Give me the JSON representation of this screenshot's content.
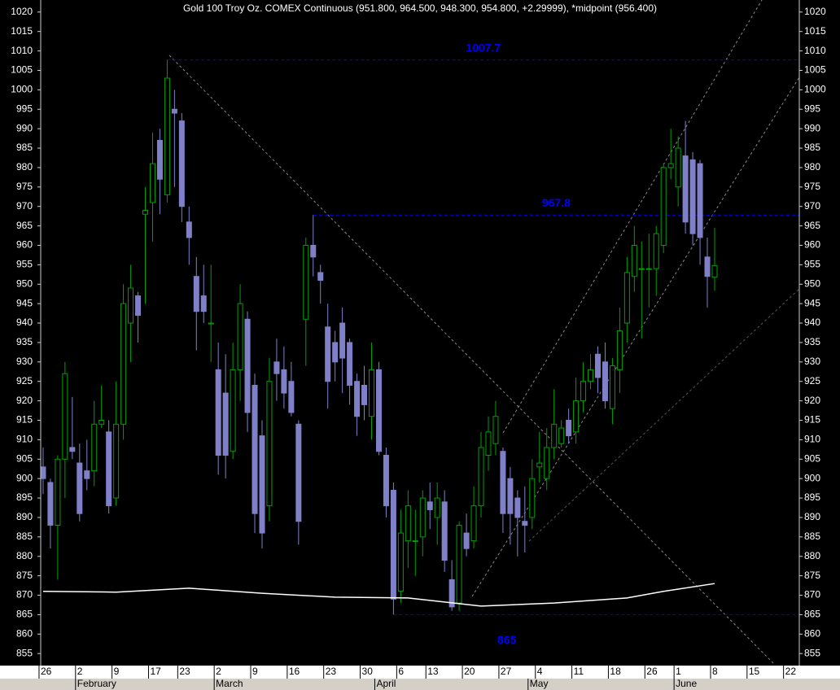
{
  "chart_data": {
    "type": "candlestick",
    "title": "Gold 100 Troy Oz. COMEX Continuous (951.800, 964.500, 948.300, 954.800, +2.29999), *midpoint (956.400)",
    "open": [
      903,
      899,
      888,
      905,
      908,
      904,
      902,
      902,
      914,
      912,
      895,
      914,
      940,
      947,
      968,
      971,
      987,
      973,
      995,
      992,
      966,
      952,
      947,
      940,
      928,
      922,
      907,
      928,
      941,
      924,
      911,
      893,
      930,
      928,
      925,
      914,
      941,
      960,
      953,
      939,
      935,
      940,
      935,
      925,
      924,
      916,
      928,
      906,
      897,
      871,
      884,
      884,
      885,
      894,
      890,
      894,
      874,
      868,
      886,
      884,
      893,
      906,
      909,
      907,
      900,
      895,
      889,
      890,
      903,
      900,
      908,
      909,
      915,
      912,
      920,
      925,
      932,
      930,
      918,
      928,
      940,
      952,
      954,
      954,
      954,
      960,
      980,
      975,
      983,
      982,
      981,
      957,
      951.8
    ],
    "high": [
      908,
      900,
      906,
      930,
      921,
      909,
      910,
      920,
      924,
      915,
      925,
      950,
      955,
      948,
      975,
      989,
      990,
      1007.7,
      1000,
      994,
      970,
      957,
      955,
      955,
      935,
      932,
      935,
      950,
      943,
      927,
      915,
      931,
      936,
      934,
      930,
      915,
      962,
      967.8,
      955,
      945,
      938,
      944,
      936,
      927,
      929,
      935,
      930,
      908,
      899,
      892,
      897,
      892,
      897,
      899,
      899,
      897,
      879,
      889,
      891,
      898,
      912,
      916,
      920,
      908,
      903,
      897,
      898,
      905,
      912,
      913,
      923,
      915,
      918,
      926,
      930,
      932,
      934,
      935,
      931,
      944,
      957,
      965,
      961,
      963,
      965,
      981,
      990,
      988,
      992,
      984,
      982,
      962,
      964.5
    ],
    "low": [
      896,
      882,
      874,
      895,
      905,
      889,
      897,
      898,
      913,
      891,
      893,
      910,
      930,
      935,
      945,
      961,
      968,
      971,
      975,
      966,
      955,
      933,
      940,
      930,
      901,
      900,
      905,
      920,
      912,
      886,
      882,
      889,
      920,
      918,
      916,
      883,
      929,
      952,
      945,
      918,
      925,
      922,
      919,
      911,
      915,
      910,
      906,
      890,
      865,
      868,
      877,
      875,
      880,
      887,
      883,
      876,
      866,
      866,
      880,
      882,
      890,
      902,
      906,
      886,
      883,
      880,
      881,
      887,
      899,
      897,
      905,
      908,
      909,
      909,
      917,
      923,
      922,
      918,
      914,
      922,
      935,
      948,
      936,
      944,
      947,
      958,
      977,
      970,
      963,
      960,
      955,
      944,
      948.3
    ],
    "close": [
      900,
      888,
      905,
      927,
      907,
      891,
      900,
      914,
      915,
      893,
      914,
      945,
      949,
      942,
      969,
      981,
      977,
      1003,
      994,
      970,
      962,
      943,
      943,
      940,
      906,
      906,
      928,
      945,
      917,
      891,
      886,
      925,
      927,
      922,
      917,
      889,
      960,
      957,
      951,
      925,
      930,
      931,
      924,
      916,
      919,
      928,
      907,
      893,
      869,
      886,
      893,
      884,
      895,
      892,
      895,
      879,
      867,
      888,
      882,
      893,
      908,
      912,
      916,
      891,
      891,
      890,
      888,
      900,
      904,
      908,
      914,
      913,
      911,
      920,
      925,
      928,
      926,
      920,
      929,
      938,
      953,
      960,
      954,
      954,
      963,
      980,
      981,
      985,
      966,
      963,
      962,
      952,
      954.8
    ],
    "up_color": "#00a000",
    "down_color": "#8080c8",
    "moving_average": {
      "color": "#ffffff",
      "x": [
        0,
        10,
        20,
        30,
        40,
        50,
        60,
        70,
        80,
        85,
        92
      ],
      "values": [
        871,
        870.8,
        871.8,
        870.5,
        869.5,
        869.3,
        867.2,
        868,
        869.3,
        871,
        873
      ]
    },
    "levels": [
      1007.7,
      967.8,
      865
    ],
    "level_color": "#0000ff",
    "xlim": [
      -0.33,
      103.6
    ],
    "ylim": [
      851.9,
      1023.1
    ],
    "yticks": [
      855,
      860,
      865,
      870,
      875,
      880,
      885,
      890,
      895,
      900,
      905,
      910,
      915,
      920,
      925,
      930,
      935,
      940,
      945,
      950,
      955,
      960,
      965,
      970,
      975,
      980,
      985,
      990,
      995,
      1000,
      1005,
      1010,
      1015,
      1020
    ],
    "xticks": [
      {
        "value": 0,
        "label": "26"
      },
      {
        "value": 5,
        "label": "2"
      },
      {
        "value": 10,
        "label": "9"
      },
      {
        "value": 15,
        "label": "17"
      },
      {
        "value": 19,
        "label": "23"
      },
      {
        "value": 24,
        "label": "2"
      },
      {
        "value": 29,
        "label": "9"
      },
      {
        "value": 34,
        "label": "16"
      },
      {
        "value": 39,
        "label": "23"
      },
      {
        "value": 44,
        "label": "30"
      },
      {
        "value": 49,
        "label": "6"
      },
      {
        "value": 53,
        "label": "13"
      },
      {
        "value": 58,
        "label": "20"
      },
      {
        "value": 63,
        "label": "27"
      },
      {
        "value": 68,
        "label": "4"
      },
      {
        "value": 73,
        "label": "11"
      },
      {
        "value": 78,
        "label": "18"
      },
      {
        "value": 83,
        "label": "26"
      },
      {
        "value": 87,
        "label": "1"
      },
      {
        "value": 92,
        "label": "8"
      },
      {
        "value": 97,
        "label": "15"
      },
      {
        "value": 102,
        "label": "22"
      }
    ],
    "month_ticks": [
      {
        "value": 5,
        "label": "February"
      },
      {
        "value": 24,
        "label": "March"
      },
      {
        "value": 46,
        "label": "April"
      },
      {
        "value": 67,
        "label": "May"
      },
      {
        "value": 87,
        "label": "June"
      }
    ]
  }
}
